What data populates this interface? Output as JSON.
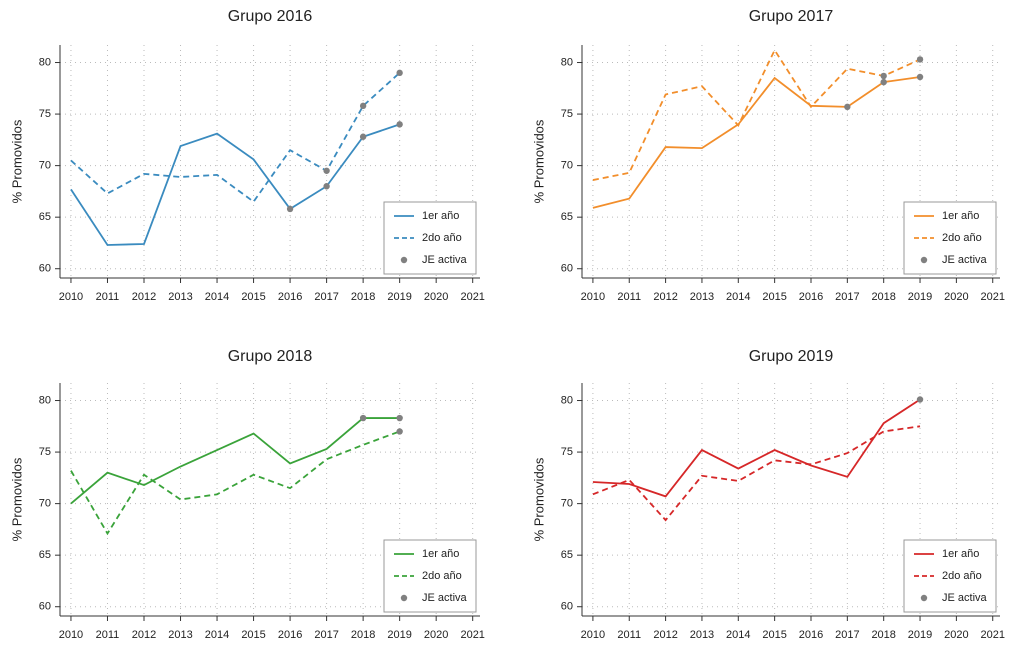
{
  "chart_data": [
    {
      "type": "line",
      "title": "Grupo 2016",
      "ylabel": "% Promovidos",
      "x": [
        2010,
        2011,
        2012,
        2013,
        2014,
        2015,
        2016,
        2017,
        2018,
        2019
      ],
      "xlim": [
        2009.7,
        2021.2
      ],
      "xticks": [
        2010,
        2011,
        2012,
        2013,
        2014,
        2015,
        2016,
        2017,
        2018,
        2019,
        2020,
        2021
      ],
      "ylim": [
        59.1,
        81.7
      ],
      "yticks": [
        60,
        65,
        70,
        75,
        80
      ],
      "grid": true,
      "legend": "lower right",
      "series": [
        {
          "name": "1er año",
          "color": "#3a8bbf",
          "linestyle": "solid",
          "values": [
            67.7,
            62.3,
            62.4,
            71.9,
            73.1,
            70.6,
            65.8,
            68.0,
            72.8,
            74.0
          ]
        },
        {
          "name": "2do año",
          "color": "#3a8bbf",
          "linestyle": "dashed",
          "values": [
            70.5,
            67.3,
            69.2,
            68.9,
            69.1,
            66.5,
            71.5,
            69.5,
            75.8,
            79.0
          ]
        },
        {
          "name": "JE activa",
          "color": "#808080",
          "type": "scatter",
          "x": [
            2016,
            2017,
            2017,
            2018,
            2018,
            2019,
            2019
          ],
          "values": [
            65.8,
            68.0,
            69.5,
            72.8,
            75.8,
            74.0,
            79.0
          ]
        }
      ]
    },
    {
      "type": "line",
      "title": "Grupo 2017",
      "ylabel": "% Promovidos",
      "x": [
        2010,
        2011,
        2012,
        2013,
        2014,
        2015,
        2016,
        2017,
        2018,
        2019
      ],
      "xlim": [
        2009.7,
        2021.2
      ],
      "xticks": [
        2010,
        2011,
        2012,
        2013,
        2014,
        2015,
        2016,
        2017,
        2018,
        2019,
        2020,
        2021
      ],
      "ylim": [
        59.1,
        81.7
      ],
      "yticks": [
        60,
        65,
        70,
        75,
        80
      ],
      "grid": true,
      "legend": "lower right",
      "series": [
        {
          "name": "1er año",
          "color": "#f28e2b",
          "linestyle": "solid",
          "values": [
            65.9,
            66.8,
            71.8,
            71.7,
            74.0,
            78.5,
            75.8,
            75.7,
            78.1,
            78.6
          ]
        },
        {
          "name": "2do año",
          "color": "#f28e2b",
          "linestyle": "dashed",
          "values": [
            68.6,
            69.3,
            76.9,
            77.7,
            73.9,
            81.2,
            75.7,
            79.4,
            78.7,
            80.3
          ]
        },
        {
          "name": "JE activa",
          "color": "#808080",
          "type": "scatter",
          "x": [
            2017,
            2018,
            2018,
            2019,
            2019
          ],
          "values": [
            75.7,
            78.1,
            78.7,
            78.6,
            80.3
          ]
        }
      ]
    },
    {
      "type": "line",
      "title": "Grupo 2018",
      "ylabel": "% Promovidos",
      "x": [
        2010,
        2011,
        2012,
        2013,
        2014,
        2015,
        2016,
        2017,
        2018,
        2019
      ],
      "xlim": [
        2009.7,
        2021.2
      ],
      "xticks": [
        2010,
        2011,
        2012,
        2013,
        2014,
        2015,
        2016,
        2017,
        2018,
        2019,
        2020,
        2021
      ],
      "ylim": [
        59.1,
        81.7
      ],
      "yticks": [
        60,
        65,
        70,
        75,
        80
      ],
      "grid": true,
      "legend": "lower right",
      "series": [
        {
          "name": "1er año",
          "color": "#3aa33a",
          "linestyle": "solid",
          "values": [
            70.0,
            73.0,
            71.8,
            73.6,
            75.2,
            76.8,
            73.9,
            75.3,
            78.3,
            78.3
          ]
        },
        {
          "name": "2do año",
          "color": "#3aa33a",
          "linestyle": "dashed",
          "values": [
            73.2,
            67.1,
            72.8,
            70.4,
            70.9,
            72.8,
            71.5,
            74.3,
            75.7,
            77.0
          ]
        },
        {
          "name": "JE activa",
          "color": "#808080",
          "type": "scatter",
          "x": [
            2018,
            2019,
            2019
          ],
          "values": [
            78.3,
            78.3,
            77.0
          ]
        }
      ]
    },
    {
      "type": "line",
      "title": "Grupo 2019",
      "ylabel": "% Promovidos",
      "x": [
        2010,
        2011,
        2012,
        2013,
        2014,
        2015,
        2016,
        2017,
        2018,
        2019
      ],
      "xlim": [
        2009.7,
        2021.2
      ],
      "xticks": [
        2010,
        2011,
        2012,
        2013,
        2014,
        2015,
        2016,
        2017,
        2018,
        2019,
        2020,
        2021
      ],
      "ylim": [
        59.1,
        81.7
      ],
      "yticks": [
        60,
        65,
        70,
        75,
        80
      ],
      "grid": true,
      "legend": "lower right",
      "series": [
        {
          "name": "1er año",
          "color": "#d62728",
          "linestyle": "solid",
          "values": [
            72.1,
            71.9,
            70.7,
            75.2,
            73.4,
            75.2,
            73.7,
            72.6,
            77.8,
            80.1
          ]
        },
        {
          "name": "2do año",
          "color": "#d62728",
          "linestyle": "dashed",
          "values": [
            70.9,
            72.3,
            68.4,
            72.7,
            72.2,
            74.2,
            73.8,
            74.9,
            77.0,
            77.5
          ]
        },
        {
          "name": "JE activa",
          "color": "#808080",
          "type": "scatter",
          "x": [
            2019
          ],
          "values": [
            80.1
          ]
        }
      ]
    }
  ]
}
